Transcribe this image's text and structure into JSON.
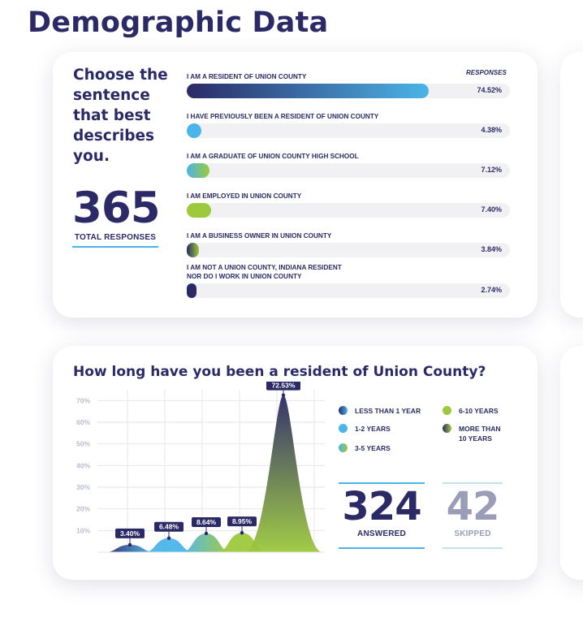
{
  "page_title": "Demographic Data",
  "colors": {
    "navy": "#2b2a66",
    "blue": "#4bb4e8",
    "green": "#9dc93c",
    "gray_text": "#9b9db8",
    "skipped_line": "#bfe1f0"
  },
  "card1": {
    "question": "Choose the sentence that best describes you.",
    "total": {
      "value": "365",
      "label": "TOTAL RESPONSES"
    },
    "responses_header": "RESPONSES",
    "rows": [
      {
        "label": "I AM A RESIDENT OF UNION COUNTY",
        "pct": "74.52%",
        "value": 74.52,
        "gradient": [
          "#2b2a66",
          "#4bb4e8"
        ]
      },
      {
        "label": "I HAVE PREVIOUSLY BEEN A RESIDENT OF UNION COUNTY",
        "pct": "4.38%",
        "value": 4.38,
        "gradient": [
          "#4bb4e8",
          "#4bb4e8"
        ]
      },
      {
        "label": "I AM A GRADUATE OF UNION COUNTY HIGH SCHOOL",
        "pct": "7.12%",
        "value": 7.12,
        "gradient": [
          "#4bb4e8",
          "#9dc93c"
        ]
      },
      {
        "label": "I AM EMPLOYED IN UNION COUNTY",
        "pct": "7.40%",
        "value": 7.4,
        "gradient": [
          "#9dc93c",
          "#9dc93c"
        ]
      },
      {
        "label": "I AM A BUSINESS OWNER IN UNION COUNTY",
        "pct": "3.84%",
        "value": 3.84,
        "gradient": [
          "#2b2a66",
          "#9dc93c"
        ]
      },
      {
        "label": "I AM NOT A UNION COUNTY, INDIANA RESIDENT\nNOR DO I WORK IN UNION COUNTY",
        "pct": "2.74%",
        "value": 2.74,
        "gradient": [
          "#2b2a66",
          "#2b2a66"
        ]
      }
    ]
  },
  "card2": {
    "question": "How long have you been a resident of Union County?",
    "legend": [
      {
        "label": "LESS THAN 1 YEAR",
        "colors": [
          "#2b2a66",
          "#4bb4e8"
        ]
      },
      {
        "label": "1-2 YEARS",
        "colors": [
          "#4bb4e8",
          "#4bb4e8"
        ]
      },
      {
        "label": "3-5 YEARS",
        "colors": [
          "#4bb4e8",
          "#9dc93c"
        ]
      },
      {
        "label": "6-10 YEARS",
        "colors": [
          "#9dc93c",
          "#9dc93c"
        ]
      },
      {
        "label": "MORE THAN\n10 YEARS",
        "colors": [
          "#2b2a66",
          "#9dc93c"
        ]
      }
    ],
    "answered": {
      "value": "324",
      "label": "ANSWERED"
    },
    "skipped": {
      "value": "42",
      "label": "SKIPPED"
    }
  },
  "chart_data": {
    "type": "area",
    "title": "How long have you been a resident of Union County?",
    "categories": [
      "LESS THAN 1 YEAR",
      "1-2 YEARS",
      "3-5 YEARS",
      "6-10 YEARS",
      "MORE THAN 10 YEARS"
    ],
    "values": [
      3.4,
      6.48,
      8.64,
      8.95,
      72.53
    ],
    "data_labels": [
      "3.40%",
      "6.48%",
      "8.64%",
      "8.95%",
      "72.53%"
    ],
    "ylim": [
      0,
      75
    ],
    "y_ticks": [
      10,
      20,
      30,
      40,
      50,
      60,
      70
    ],
    "y_tick_labels": [
      "10%",
      "20%",
      "30%",
      "40%",
      "50%",
      "60%",
      "70%"
    ],
    "grid": true,
    "legend_position": "right"
  }
}
